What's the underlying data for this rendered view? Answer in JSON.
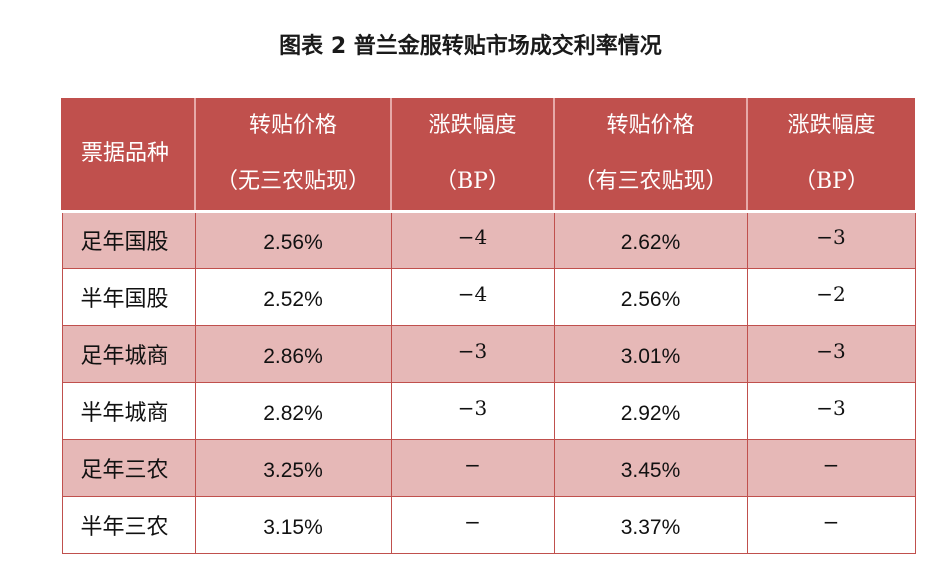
{
  "title": "图表 2  普兰金服转贴市场成交利率情况",
  "table": {
    "headers": [
      {
        "line1": "票据品种",
        "line2": ""
      },
      {
        "line1": "转贴价格",
        "line2": "（无三农贴现）"
      },
      {
        "line1": "涨跌幅度",
        "line2": "（BP）"
      },
      {
        "line1": "转贴价格",
        "line2": "（有三农贴现）"
      },
      {
        "line1": "涨跌幅度",
        "line2": "（BP）"
      }
    ],
    "rows": [
      {
        "name": "足年国股",
        "price_no": "2.56%",
        "chg_no": "−4",
        "price_yes": "2.62%",
        "chg_yes": "−3"
      },
      {
        "name": "半年国股",
        "price_no": "2.52%",
        "chg_no": "−4",
        "price_yes": "2.56%",
        "chg_yes": "−2"
      },
      {
        "name": "足年城商",
        "price_no": "2.86%",
        "chg_no": "−3",
        "price_yes": "3.01%",
        "chg_yes": "−3"
      },
      {
        "name": "半年城商",
        "price_no": "2.82%",
        "chg_no": "−3",
        "price_yes": "2.92%",
        "chg_yes": "−3"
      },
      {
        "name": "足年三农",
        "price_no": "3.25%",
        "chg_no": "−",
        "price_yes": "3.45%",
        "chg_yes": "−"
      },
      {
        "name": "半年三农",
        "price_no": "3.15%",
        "chg_no": "−",
        "price_yes": "3.37%",
        "chg_yes": "−"
      }
    ]
  },
  "colors": {
    "header_bg": "#c0504d",
    "shaded_row_bg": "#e6b8b7",
    "border": "#c0504d"
  }
}
